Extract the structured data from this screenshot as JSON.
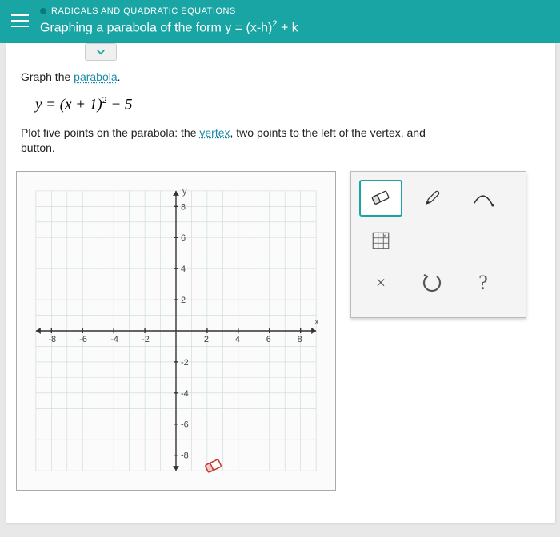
{
  "header": {
    "breadcrumb": "RADICALS AND QUADRATIC EQUATIONS",
    "title_prefix": "Graphing a parabola of the form y = (x-h)",
    "title_exp": "2",
    "title_suffix": " + k",
    "header_bg": "#1aa5a5"
  },
  "question": {
    "prompt_prefix": "Graph the ",
    "prompt_link": "parabola",
    "prompt_suffix": ".",
    "equation_lhs": "y = ",
    "equation_base": "(x + 1)",
    "equation_exp": "2",
    "equation_tail": " − 5",
    "instruction_1": "Plot five points on the parabola: the ",
    "instruction_link": "vertex",
    "instruction_2": ", two points to the left of the vertex, and",
    "instruction_3": "button."
  },
  "graph": {
    "xmin": -9,
    "xmax": 9,
    "ymin": -9,
    "ymax": 9,
    "xticks": [
      -8,
      -6,
      -4,
      -2,
      2,
      4,
      6,
      8
    ],
    "yticks": [
      -8,
      -6,
      -4,
      -2,
      2,
      4,
      6,
      8
    ],
    "xlabel": "x",
    "ylabel": "y",
    "grid_color": "#c8d8d8",
    "axis_color": "#333333",
    "bg_color": "#fbfbfb"
  },
  "tools": {
    "eraser_label": "eraser",
    "pen_label": "pen",
    "curve_label": "curve",
    "grid_label": "grid-snap",
    "close_label": "×",
    "undo_label": "↺",
    "help_label": "?",
    "selected_color": "#1aa5a5"
  }
}
